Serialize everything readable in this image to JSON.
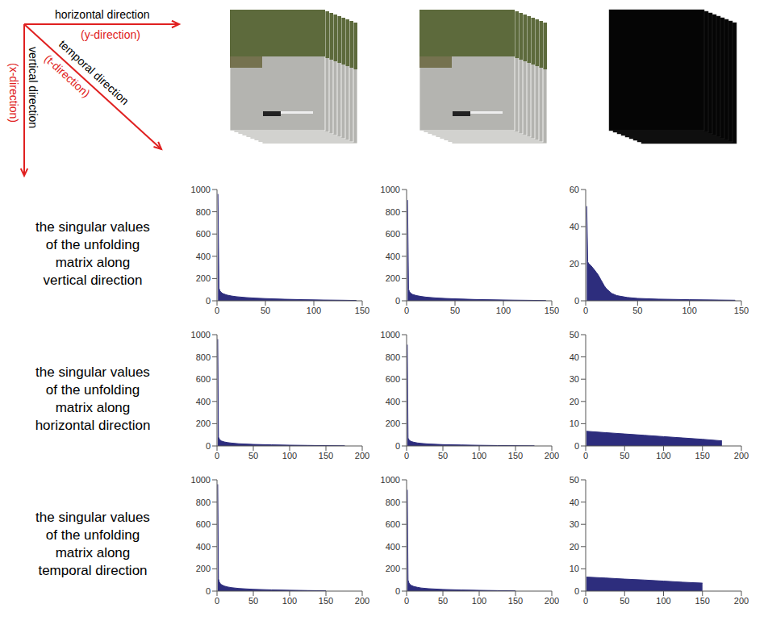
{
  "axes_diagram": {
    "horizontal": "horizontal direction",
    "horizontal_sub": "(y-direction)",
    "vertical": "vertical direction",
    "vertical_sub": "(x-direction)",
    "temporal": "temporal direction",
    "temporal_sub": "(t-direction)"
  },
  "row_labels": [
    [
      "the singular values",
      "of the unfolding",
      "matrix along",
      "vertical direction"
    ],
    [
      "the singular values",
      "of the unfolding",
      "matrix along",
      "horizontal direction"
    ],
    [
      "the singular values",
      "of the unfolding",
      "matrix along",
      "temporal direction"
    ]
  ],
  "chart_data": [
    {
      "type": "area",
      "color": "#2d2d7d",
      "grid": false,
      "x": [
        1,
        2,
        3,
        4,
        6,
        10,
        15,
        20,
        30,
        40,
        50,
        70,
        90,
        110,
        130,
        144
      ],
      "values": [
        960,
        115,
        90,
        78,
        65,
        52,
        43,
        37,
        29,
        24,
        20,
        14,
        10,
        7,
        5,
        3
      ],
      "xlim": [
        0,
        150
      ],
      "xticks": [
        0,
        50,
        100,
        150
      ],
      "ylim": [
        0,
        1000
      ],
      "yticks": [
        0,
        200,
        400,
        600,
        800,
        1000
      ]
    },
    {
      "type": "area",
      "color": "#2d2d7d",
      "grid": false,
      "x": [
        1,
        2,
        3,
        4,
        6,
        10,
        15,
        20,
        30,
        40,
        50,
        70,
        90,
        110,
        130,
        144
      ],
      "values": [
        905,
        105,
        82,
        70,
        58,
        47,
        39,
        33,
        26,
        21,
        18,
        12,
        9,
        6,
        4,
        2
      ],
      "xlim": [
        0,
        150
      ],
      "xticks": [
        0,
        50,
        100,
        150
      ],
      "ylim": [
        0,
        1000
      ],
      "yticks": [
        0,
        200,
        400,
        600,
        800,
        1000
      ]
    },
    {
      "type": "area",
      "color": "#2d2d7d",
      "grid": false,
      "x": [
        1,
        2,
        3,
        5,
        8,
        10,
        12,
        15,
        18,
        20,
        25,
        30,
        40,
        50,
        70,
        100,
        144
      ],
      "values": [
        51,
        21,
        20,
        19,
        17,
        15.5,
        14,
        11,
        8,
        6.5,
        4,
        2.8,
        1.8,
        1.3,
        0.9,
        0.6,
        0.3
      ],
      "xlim": [
        0,
        150
      ],
      "xticks": [
        0,
        50,
        100,
        150
      ],
      "ylim": [
        0,
        60
      ],
      "yticks": [
        0,
        20,
        40,
        60
      ]
    },
    {
      "type": "area",
      "color": "#2d2d7d",
      "grid": false,
      "x": [
        1,
        2,
        3,
        4,
        6,
        10,
        15,
        20,
        30,
        50,
        75,
        100,
        125,
        150,
        176
      ],
      "values": [
        960,
        80,
        65,
        55,
        45,
        36,
        30,
        26,
        20,
        14,
        10,
        7,
        5,
        3,
        1.5
      ],
      "xlim": [
        0,
        200
      ],
      "xticks": [
        0,
        50,
        100,
        150,
        200
      ],
      "ylim": [
        0,
        1000
      ],
      "yticks": [
        0,
        200,
        400,
        600,
        800,
        1000
      ]
    },
    {
      "type": "area",
      "color": "#2d2d7d",
      "grid": false,
      "x": [
        1,
        2,
        3,
        4,
        6,
        10,
        15,
        20,
        30,
        50,
        75,
        100,
        125,
        150,
        176
      ],
      "values": [
        910,
        72,
        58,
        50,
        41,
        33,
        27,
        23,
        18,
        12,
        9,
        6,
        4,
        2.5,
        1.2
      ],
      "xlim": [
        0,
        200
      ],
      "xticks": [
        0,
        50,
        100,
        150,
        200
      ],
      "ylim": [
        0,
        1000
      ],
      "yticks": [
        0,
        200,
        400,
        600,
        800,
        1000
      ]
    },
    {
      "type": "area",
      "color": "#2d2d7d",
      "grid": false,
      "x": [
        1,
        25,
        50,
        75,
        100,
        125,
        150,
        175
      ],
      "values": [
        6.6,
        6.0,
        5.4,
        4.8,
        4.2,
        3.6,
        3.0,
        2.3
      ],
      "xlim": [
        0,
        200
      ],
      "xticks": [
        0,
        50,
        100,
        150,
        200
      ],
      "ylim": [
        0,
        50
      ],
      "yticks": [
        0,
        10,
        20,
        30,
        40,
        50
      ]
    },
    {
      "type": "area",
      "color": "#2d2d7d",
      "grid": false,
      "x": [
        1,
        2,
        3,
        4,
        6,
        10,
        15,
        20,
        30,
        50,
        75,
        100,
        125,
        150
      ],
      "values": [
        960,
        110,
        85,
        72,
        58,
        45,
        37,
        31,
        24,
        16,
        11,
        8,
        5,
        3
      ],
      "xlim": [
        0,
        200
      ],
      "xticks": [
        0,
        50,
        100,
        150,
        200
      ],
      "ylim": [
        0,
        1000
      ],
      "yticks": [
        0,
        200,
        400,
        600,
        800,
        1000
      ]
    },
    {
      "type": "area",
      "color": "#2d2d7d",
      "grid": false,
      "x": [
        1,
        2,
        3,
        4,
        6,
        10,
        15,
        20,
        30,
        50,
        75,
        100,
        125,
        150
      ],
      "values": [
        910,
        100,
        78,
        66,
        53,
        41,
        34,
        28,
        22,
        15,
        10,
        7,
        4.5,
        2.5
      ],
      "xlim": [
        0,
        200
      ],
      "xticks": [
        0,
        50,
        100,
        150,
        200
      ],
      "ylim": [
        0,
        1000
      ],
      "yticks": [
        0,
        200,
        400,
        600,
        800,
        1000
      ]
    },
    {
      "type": "area",
      "color": "#2d2d7d",
      "grid": false,
      "x": [
        1,
        25,
        50,
        75,
        100,
        125,
        150
      ],
      "values": [
        6.3,
        5.9,
        5.4,
        5.0,
        4.5,
        4.0,
        3.6
      ],
      "xlim": [
        0,
        200
      ],
      "xticks": [
        0,
        50,
        100,
        150,
        200
      ],
      "ylim": [
        0,
        50
      ],
      "yticks": [
        0,
        10,
        20,
        30,
        40,
        50
      ]
    }
  ]
}
